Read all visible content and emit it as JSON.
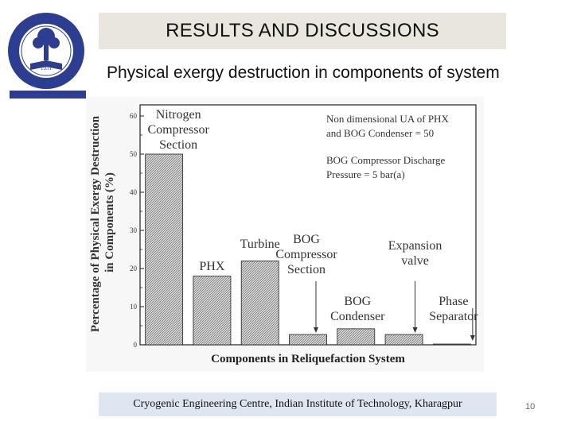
{
  "slide": {
    "title": "RESULTS AND DISCUSSIONS",
    "subtitle": "Physical exergy destruction in components of  system",
    "footer": "Cryogenic Engineering Centre, Indian Institute of Technology, Kharagpur",
    "page_number": "10"
  },
  "logo": {
    "year": "1951",
    "icon": "iit-kharagpur-emblem-icon"
  },
  "chart_data": {
    "type": "bar",
    "categories": [
      "Nitrogen Compressor Section",
      "PHX",
      "Turbine",
      "BOG Compressor Section",
      "BOG Condenser",
      "Expansion valve",
      "Phase Separator"
    ],
    "category_labels": [
      [
        "Nitrogen",
        "Compressor",
        "Section"
      ],
      [
        "PHX"
      ],
      [
        "Turbine"
      ],
      [
        "BOG",
        "Compressor",
        "Section"
      ],
      [
        "BOG",
        "Condenser"
      ],
      [
        "Expansion",
        "valve"
      ],
      [
        "Phase",
        "Separator"
      ]
    ],
    "values": [
      50,
      18,
      22,
      2.7,
      4.2,
      2.7,
      0.2
    ],
    "xlabel": "Components in Reliquefaction System",
    "ylabel_lines": [
      "Percentage of Physical Exergy Destruction",
      "in Components (%)"
    ],
    "ylim": [
      0,
      60
    ],
    "yticks": [
      "0",
      "10",
      "20",
      "30",
      "40",
      "50",
      "60"
    ],
    "annotations": [
      "Non dimensional UA of PHX",
      "and BOG Condenser = 50",
      "BOG Compressor Discharge",
      "Pressure = 5 bar(a)"
    ],
    "bar_fill": "hatched-gray",
    "grid": false
  }
}
